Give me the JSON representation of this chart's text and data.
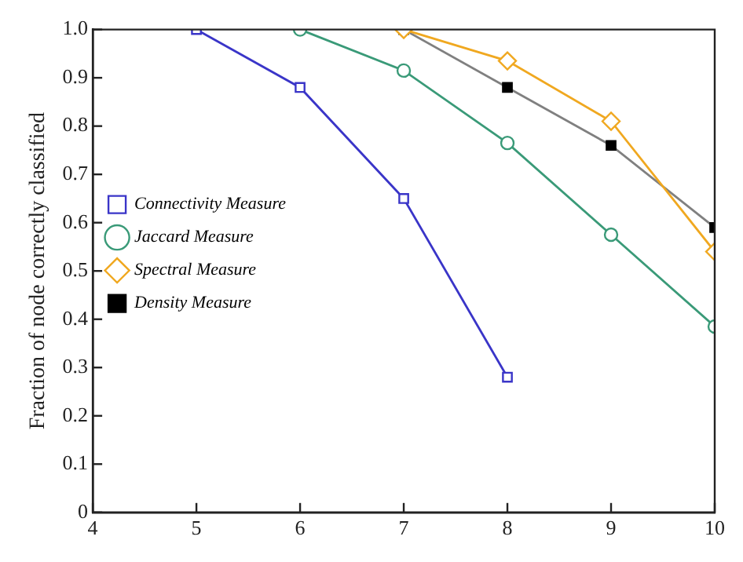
{
  "chart_data": {
    "type": "line",
    "ylabel": "Fraction of node correctly classified",
    "xlim": [
      4,
      10
    ],
    "xticks": [
      4,
      5,
      6,
      7,
      8,
      9,
      10
    ],
    "ylim": [
      0,
      1
    ],
    "yticks": [
      0,
      0.1,
      0.2,
      0.3,
      0.4,
      0.5,
      0.6,
      0.7,
      0.8,
      0.9,
      {
        "value": 1,
        "label": "1.0"
      }
    ],
    "grid": false,
    "legend": "center left",
    "series": [
      {
        "name": "Connectivity Measure",
        "color": "#3a35c8",
        "marker": "square",
        "x": [
          5,
          6,
          7,
          8
        ],
        "values": [
          1.0,
          0.88,
          0.65,
          0.28
        ]
      },
      {
        "name": "Jaccard Measure",
        "color": "#3a9a78",
        "marker": "circle",
        "x": [
          6,
          7,
          8,
          9,
          10
        ],
        "values": [
          1.0,
          0.915,
          0.765,
          0.575,
          0.385
        ]
      },
      {
        "name": "Spectral Measure",
        "color": "#f0a820",
        "marker": "diamond",
        "x": [
          7,
          8,
          9,
          10
        ],
        "values": [
          1.0,
          0.935,
          0.81,
          0.54
        ]
      },
      {
        "name": "Density Measure",
        "color": "#808080",
        "marker": "square",
        "x": [
          7,
          8,
          9,
          10
        ],
        "values": [
          1.0,
          0.88,
          0.76,
          0.59
        ]
      }
    ]
  }
}
